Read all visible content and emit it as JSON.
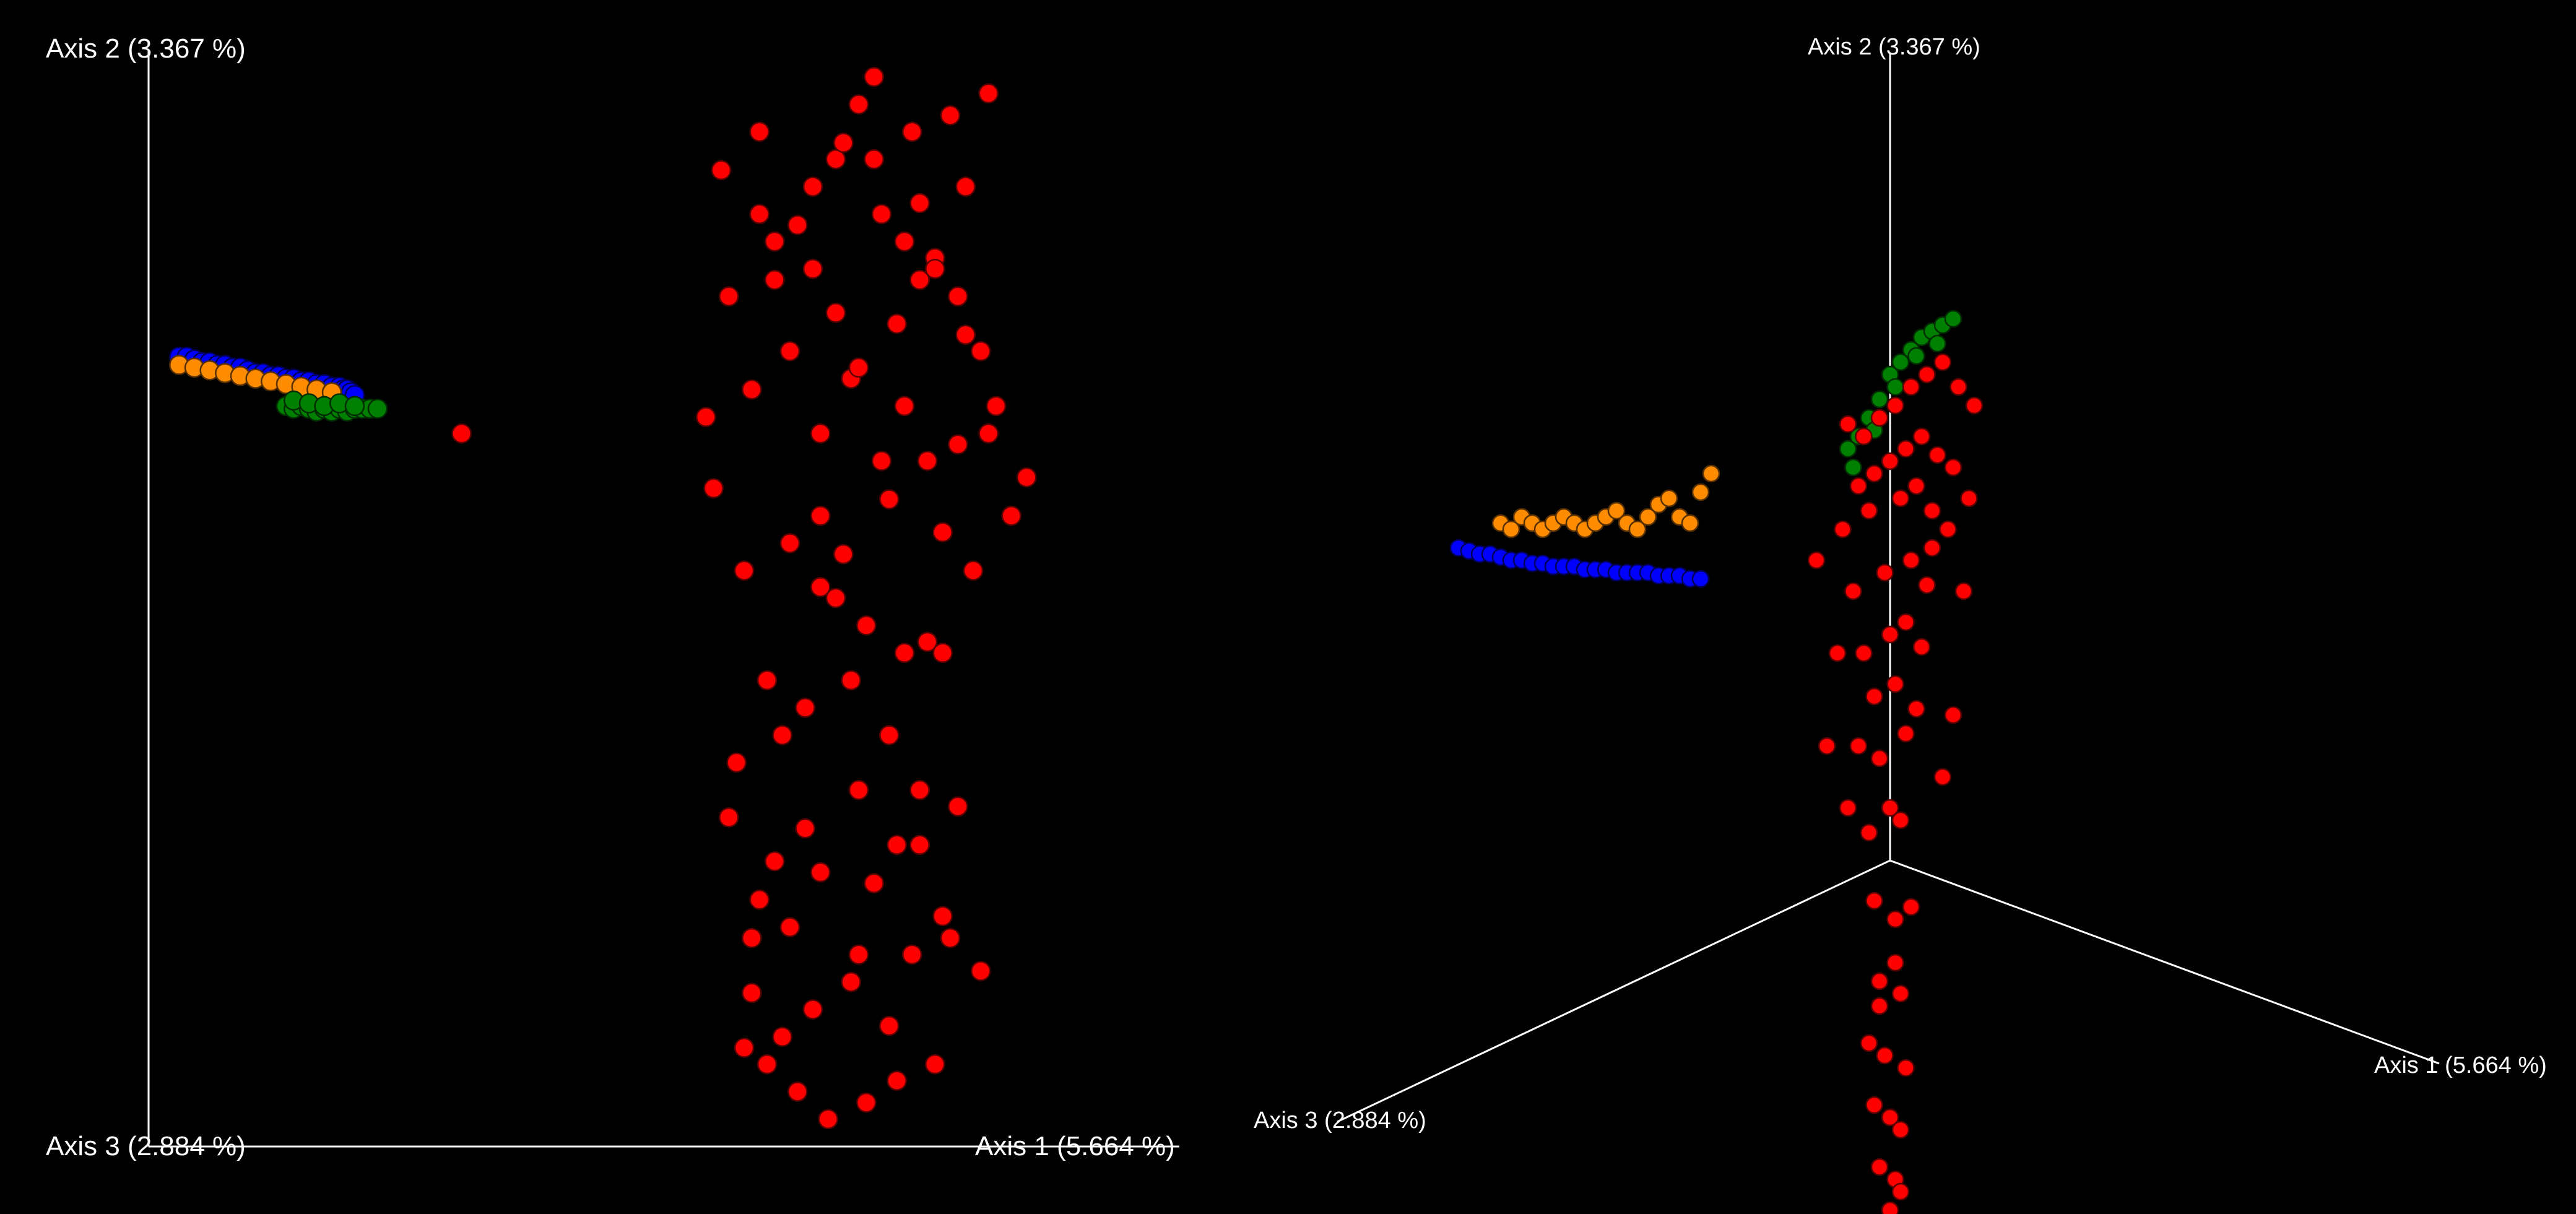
{
  "chart_data": [
    {
      "type": "scatter",
      "title": "",
      "view": "orthographic (Axis 1 horizontal, Axis 2 vertical, Axis 3 toward viewer)",
      "axes": {
        "axis1": {
          "label": "Axis 1 (5.664 %)"
        },
        "axis2": {
          "label": "Axis 2 (3.367 %)"
        },
        "axis3": {
          "label": "Axis 3 (2.884 %)"
        }
      },
      "xlim": [
        -0.35,
        1.0
      ],
      "ylim": [
        -1.0,
        1.0
      ],
      "grid": false,
      "legend": "none",
      "series": [
        {
          "color": "#0000ff",
          "x": [
            -0.31,
            -0.3,
            -0.29,
            -0.28,
            -0.27,
            -0.26,
            -0.25,
            -0.24,
            -0.23,
            -0.22,
            -0.21,
            -0.2,
            -0.19,
            -0.18,
            -0.17,
            -0.16,
            -0.15,
            -0.14,
            -0.13,
            -0.12,
            -0.11,
            -0.1,
            -0.095,
            -0.09,
            -0.085,
            -0.08
          ],
          "y": [
            0.44,
            0.44,
            0.435,
            0.43,
            0.43,
            0.425,
            0.425,
            0.42,
            0.42,
            0.415,
            0.41,
            0.41,
            0.405,
            0.405,
            0.4,
            0.4,
            0.395,
            0.395,
            0.39,
            0.39,
            0.385,
            0.385,
            0.38,
            0.38,
            0.375,
            0.37
          ]
        },
        {
          "color": "#ff8c00",
          "x": [
            -0.31,
            -0.29,
            -0.27,
            -0.25,
            -0.23,
            -0.21,
            -0.19,
            -0.17,
            -0.15,
            -0.13,
            -0.11
          ],
          "y": [
            0.425,
            0.42,
            0.415,
            0.41,
            0.405,
            0.4,
            0.395,
            0.39,
            0.385,
            0.38,
            0.375
          ]
        },
        {
          "color": "#008000",
          "x": [
            -0.17,
            -0.16,
            -0.15,
            -0.14,
            -0.13,
            -0.12,
            -0.11,
            -0.1,
            -0.09,
            -0.08,
            -0.07,
            -0.06,
            -0.05,
            -0.16,
            -0.14,
            -0.12,
            -0.1,
            -0.08
          ],
          "y": [
            0.35,
            0.345,
            0.35,
            0.345,
            0.34,
            0.345,
            0.34,
            0.345,
            0.34,
            0.345,
            0.345,
            0.345,
            0.345,
            0.36,
            0.355,
            0.35,
            0.355,
            0.35
          ]
        },
        {
          "color": "#ff0000",
          "x": [
            0.06,
            0.38,
            0.6,
            0.58,
            0.4,
            0.65,
            0.55,
            0.45,
            0.7,
            0.75,
            0.72,
            0.66,
            0.5,
            0.52,
            0.68,
            0.41,
            0.47,
            0.63,
            0.74,
            0.57,
            0.44,
            0.53,
            0.61,
            0.39,
            0.78,
            0.8,
            0.76,
            0.71,
            0.49,
            0.43,
            0.69,
            0.55,
            0.59,
            0.64,
            0.46,
            0.51,
            0.48,
            0.42,
            0.67,
            0.73,
            0.62,
            0.56,
            0.41,
            0.58,
            0.66,
            0.71,
            0.53,
            0.45,
            0.49,
            0.6,
            0.65,
            0.69,
            0.57,
            0.52,
            0.48,
            0.44,
            0.62,
            0.68,
            0.74,
            0.7,
            0.63,
            0.59,
            0.54,
            0.5,
            0.46,
            0.43,
            0.47,
            0.52,
            0.56,
            0.61,
            0.66,
            0.72,
            0.55,
            0.58,
            0.64,
            0.67,
            0.53,
            0.49,
            0.45,
            0.6,
            0.64,
            0.68,
            0.71,
            0.75,
            0.57,
            0.62,
            0.51,
            0.47,
            0.44,
            0.66,
            0.69,
            0.53,
            0.58,
            0.63
          ],
          "y": [
            0.3,
            0.33,
            0.95,
            0.9,
            0.78,
            0.85,
            0.8,
            0.7,
            0.88,
            0.92,
            0.75,
            0.72,
            0.68,
            0.6,
            0.62,
            0.55,
            0.58,
            0.5,
            0.45,
            0.4,
            0.38,
            0.3,
            0.25,
            0.2,
            0.15,
            0.22,
            0.35,
            0.28,
            0.1,
            0.05,
            0.12,
            0.0,
            -0.05,
            -0.1,
            -0.15,
            -0.2,
            -0.25,
            -0.3,
            -0.08,
            0.05,
            0.18,
            0.08,
            -0.4,
            -0.35,
            -0.45,
            -0.38,
            -0.5,
            -0.55,
            -0.6,
            -0.52,
            -0.65,
            -0.58,
            -0.7,
            -0.75,
            -0.8,
            -0.72,
            -0.78,
            -0.85,
            -0.68,
            -0.62,
            -0.88,
            -0.92,
            -0.95,
            -0.9,
            -0.85,
            -0.82,
            0.65,
            0.75,
            0.83,
            0.7,
            0.58,
            0.48,
            0.52,
            0.42,
            0.35,
            0.25,
            0.15,
            0.45,
            0.85,
            0.8,
            0.65,
            0.6,
            0.55,
            0.3,
            -0.15,
            -0.25,
            -0.42,
            -0.48,
            -0.62,
            -0.35,
            -0.1,
            0.02,
            -0.65,
            -0.45
          ]
        }
      ]
    },
    {
      "type": "scatter",
      "title": "",
      "view": "perspective 3D",
      "axes": {
        "axis1": {
          "label": "Axis 1 (5.664 %)"
        },
        "axis2": {
          "label": "Axis 2 (3.367 %)"
        },
        "axis3": {
          "label": "Axis 3 (2.884 %)"
        }
      },
      "grid": false,
      "legend": "none",
      "series": [
        {
          "color": "#0000ff",
          "x": [
            -0.82,
            -0.8,
            -0.78,
            -0.76,
            -0.74,
            -0.72,
            -0.7,
            -0.68,
            -0.66,
            -0.64,
            -0.62,
            -0.6,
            -0.58,
            -0.56,
            -0.54,
            -0.52,
            -0.5,
            -0.48,
            -0.46,
            -0.44,
            -0.42,
            -0.4,
            -0.38,
            -0.36
          ],
          "y": [
            0.12,
            0.115,
            0.11,
            0.11,
            0.105,
            0.1,
            0.1,
            0.095,
            0.095,
            0.09,
            0.09,
            0.09,
            0.085,
            0.085,
            0.085,
            0.08,
            0.08,
            0.08,
            0.08,
            0.075,
            0.075,
            0.075,
            0.07,
            0.07
          ]
        },
        {
          "color": "#ff8c00",
          "x": [
            -0.74,
            -0.72,
            -0.7,
            -0.68,
            -0.66,
            -0.64,
            -0.62,
            -0.6,
            -0.58,
            -0.56,
            -0.54,
            -0.52,
            -0.5,
            -0.48,
            -0.46,
            -0.44,
            -0.42,
            -0.4,
            -0.38,
            -0.36,
            -0.34
          ],
          "y": [
            0.16,
            0.15,
            0.17,
            0.16,
            0.15,
            0.16,
            0.17,
            0.16,
            0.15,
            0.16,
            0.17,
            0.18,
            0.16,
            0.15,
            0.17,
            0.19,
            0.2,
            0.17,
            0.16,
            0.21,
            0.24
          ]
        },
        {
          "color": "#008000",
          "x": [
            -0.08,
            -0.06,
            -0.04,
            -0.02,
            0.0,
            0.02,
            0.04,
            0.06,
            0.08,
            0.1,
            0.12,
            -0.07,
            -0.03,
            0.01,
            0.05,
            0.09
          ],
          "y": [
            0.28,
            0.3,
            0.33,
            0.36,
            0.4,
            0.42,
            0.44,
            0.46,
            0.47,
            0.48,
            0.49,
            0.25,
            0.31,
            0.38,
            0.43,
            0.45
          ]
        },
        {
          "color": "#ff0000",
          "x": [
            -0.14,
            -0.08,
            -0.05,
            -0.02,
            0.01,
            0.04,
            0.07,
            0.1,
            0.13,
            0.16,
            -0.06,
            -0.03,
            0.0,
            0.03,
            0.06,
            0.09,
            0.12,
            -0.09,
            -0.04,
            0.02,
            0.05,
            0.08,
            0.11,
            -0.07,
            -0.01,
            0.04,
            0.07,
            -0.05,
            0.0,
            0.03,
            0.06,
            -0.03,
            0.01,
            0.05,
            -0.06,
            -0.02,
            0.03,
            0.0,
            -0.04,
            0.02,
            -0.03,
            0.01,
            0.04,
            -0.02,
            0.02,
            -0.01,
            0.03,
            -0.04,
            0.0,
            0.02,
            -0.03,
            0.01,
            -0.02,
            0.02,
            0.0,
            -0.02,
            0.01,
            0.14,
            0.12,
            0.1,
            -0.1,
            -0.12,
            0.15,
            0.08,
            -0.08
          ],
          "y": [
            0.1,
            0.32,
            0.3,
            0.33,
            0.35,
            0.38,
            0.4,
            0.42,
            0.38,
            0.35,
            0.22,
            0.24,
            0.26,
            0.28,
            0.3,
            0.27,
            0.25,
            0.15,
            0.18,
            0.2,
            0.22,
            0.18,
            0.15,
            0.05,
            0.08,
            0.1,
            0.06,
            -0.05,
            -0.02,
            0.0,
            -0.04,
            -0.12,
            -0.1,
            -0.14,
            -0.2,
            -0.22,
            -0.18,
            -0.3,
            -0.34,
            -0.32,
            -0.45,
            -0.48,
            -0.46,
            -0.58,
            -0.6,
            -0.7,
            -0.72,
            -0.68,
            -0.8,
            -0.82,
            -0.78,
            -0.9,
            -0.88,
            -0.92,
            -0.95,
            -0.62,
            -0.55,
            0.05,
            -0.15,
            -0.25,
            -0.05,
            -0.2,
            0.2,
            0.12,
            -0.3
          ]
        }
      ]
    }
  ]
}
